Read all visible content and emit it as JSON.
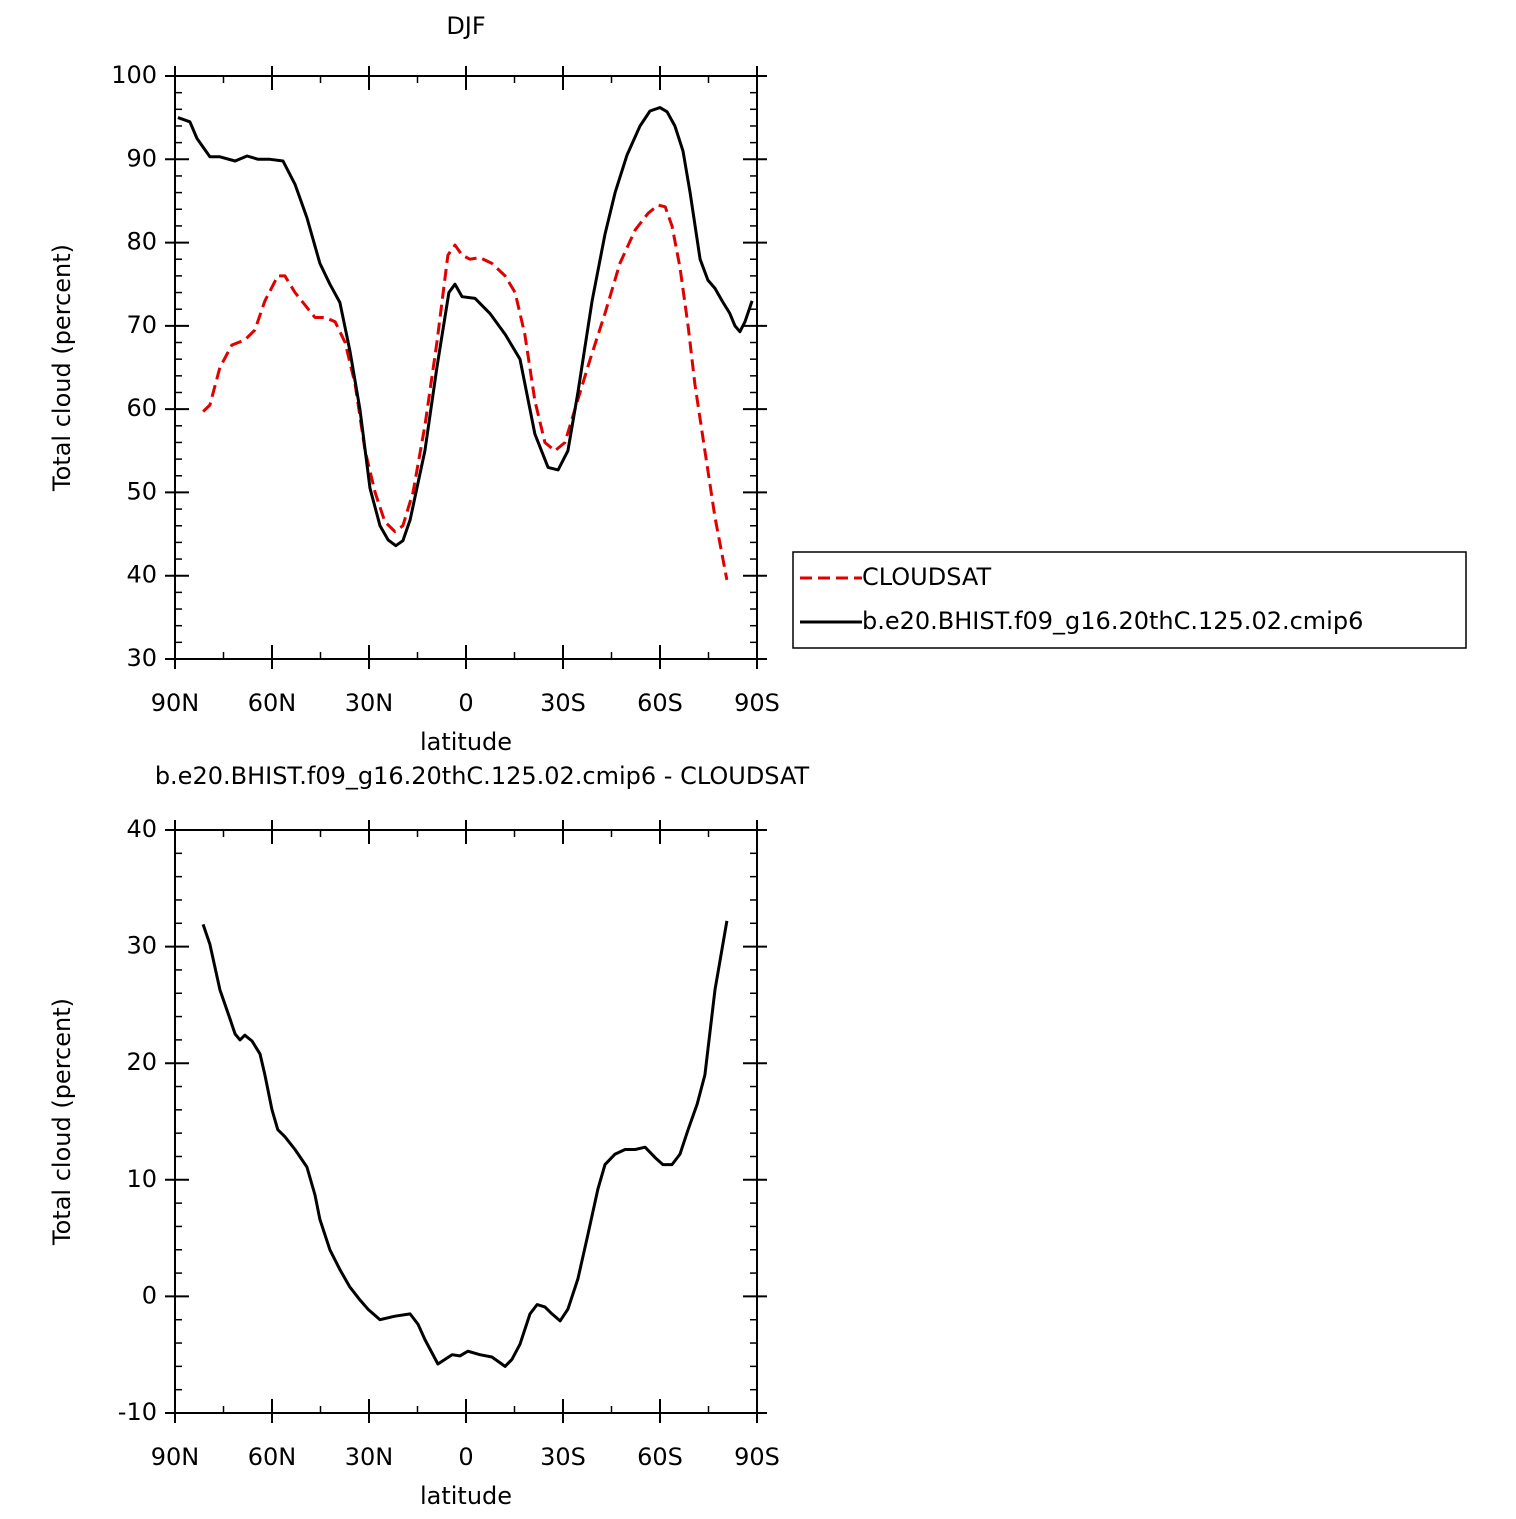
{
  "chart_data": [
    {
      "type": "line",
      "title": "DJF",
      "xlabel": "latitude",
      "ylabel": "Total cloud (percent)",
      "xlim": [
        90,
        -90
      ],
      "xticks": [
        {
          "value": 90,
          "label": "90N"
        },
        {
          "value": 60,
          "label": "60N"
        },
        {
          "value": 30,
          "label": "30N"
        },
        0,
        {
          "value": -30,
          "label": "30S"
        },
        {
          "value": -60,
          "label": "60S"
        },
        {
          "value": -90,
          "label": "90S"
        }
      ],
      "ylim": [
        30,
        100
      ],
      "yticks": [
        30,
        40,
        50,
        60,
        70,
        80,
        90,
        100
      ],
      "legend": "right",
      "series": [
        {
          "name": "CLOUDSAT",
          "color": "#e00000",
          "style": "dashed",
          "x": [
            81.3,
            79.2,
            76.1,
            72.4,
            68.4,
            65.3,
            62.2,
            58.2,
            56.0,
            52.9,
            49.8,
            46.7,
            43.6,
            40.5,
            37.4,
            34.3,
            31.2,
            28.1,
            25.1,
            22.0,
            19.5,
            16.4,
            12.7,
            9.0,
            5.6,
            3.4,
            1.2,
            -1.2,
            -4.3,
            -8.0,
            -12.1,
            -15.2,
            -18.2,
            -21.3,
            -24.4,
            -27.5,
            -30.6,
            -33.7,
            -38.4,
            -43.0,
            -47.6,
            -52.3,
            -56.3,
            -59.4,
            -61.6,
            -63.7,
            -66.2,
            -68.7,
            -70.8,
            -73.9,
            -77.0,
            -80.7
          ],
          "values": [
            59.7,
            60.5,
            65,
            67.7,
            68.3,
            69.5,
            73,
            76,
            76,
            74,
            72.5,
            71,
            71,
            70.5,
            68,
            63,
            55,
            50,
            46.5,
            45.3,
            46,
            50,
            58,
            68,
            78.5,
            79.7,
            78.5,
            78,
            78.2,
            77.5,
            76,
            74,
            69,
            61,
            56,
            55,
            56,
            60,
            66,
            71.5,
            77.5,
            81.5,
            83.5,
            84.5,
            84.3,
            82,
            77,
            70,
            63,
            55,
            47,
            39.5
          ]
        },
        {
          "name": "b.e20.BHIST.f09_g16.20thC.125.02.cmip6",
          "color": "#000000",
          "style": "solid",
          "x": [
            89.1,
            85.4,
            83.2,
            79.2,
            76.1,
            71.4,
            67.7,
            64.3,
            60.6,
            56.6,
            52.9,
            49.2,
            45.2,
            42.1,
            39.0,
            35.9,
            32.8,
            29.7,
            26.6,
            24.1,
            21.7,
            19.5,
            17.3,
            12.7,
            9.0,
            5.3,
            3.4,
            1.2,
            -2.8,
            -7.4,
            -12.1,
            -16.7,
            -21.3,
            -25.4,
            -28.5,
            -31.5,
            -34.6,
            -39.0,
            -43.0,
            -46.1,
            -49.8,
            -53.8,
            -56.9,
            -60.0,
            -62.2,
            -64.6,
            -67.1,
            -69.3,
            -72.4,
            -74.8,
            -77.0,
            -79.2,
            -81.6,
            -83.2,
            -84.7,
            -86.3,
            -88.5
          ],
          "values": [
            95,
            94.5,
            92.5,
            90.3,
            90.3,
            89.8,
            90.4,
            90,
            90,
            89.8,
            87,
            83,
            77.5,
            75,
            72.8,
            67,
            60,
            50.5,
            46,
            44.3,
            43.6,
            44.2,
            46.7,
            55,
            65,
            74,
            75,
            73.5,
            73.3,
            71.5,
            69,
            66,
            57,
            53,
            52.7,
            55,
            62,
            73,
            81,
            86,
            90.5,
            94,
            95.8,
            96.2,
            95.7,
            94,
            91,
            86,
            78,
            75.5,
            74.5,
            73,
            71.5,
            70,
            69.3,
            70.5,
            73
          ]
        }
      ]
    },
    {
      "type": "line",
      "title": "b.e20.BHIST.f09_g16.20thC.125.02.cmip6 - CLOUDSAT",
      "xlabel": "latitude",
      "ylabel": "Total cloud (percent)",
      "xlim": [
        90,
        -90
      ],
      "xticks": [
        {
          "value": 90,
          "label": "90N"
        },
        {
          "value": 60,
          "label": "60N"
        },
        {
          "value": 30,
          "label": "30N"
        },
        0,
        {
          "value": -30,
          "label": "30S"
        },
        {
          "value": -60,
          "label": "60S"
        },
        {
          "value": -90,
          "label": "90S"
        }
      ],
      "ylim": [
        -10,
        40
      ],
      "yticks": [
        -10,
        0,
        10,
        20,
        30,
        40
      ],
      "series": [
        {
          "color": "#000000",
          "style": "solid",
          "x": [
            81.3,
            79.2,
            76.1,
            73.0,
            71.4,
            69.9,
            68.4,
            66.2,
            63.7,
            62.2,
            60.0,
            58.2,
            56.0,
            52.9,
            49.2,
            46.7,
            45.2,
            42.1,
            39.0,
            35.9,
            32.8,
            30.3,
            26.6,
            22.0,
            17.3,
            14.8,
            12.7,
            8.7,
            6.5,
            4.3,
            1.9,
            -0.6,
            -4.3,
            -8.0,
            -12.1,
            -14.2,
            -16.7,
            -19.8,
            -22.0,
            -24.4,
            -26.6,
            -29.1,
            -31.5,
            -34.6,
            -37.7,
            -40.8,
            -43.0,
            -46.1,
            -49.2,
            -52.3,
            -55.4,
            -58.5,
            -60.9,
            -63.7,
            -66.2,
            -68.7,
            -71.5,
            -73.9,
            -77.0,
            -80.7
          ],
          "values": [
            31.9,
            30.2,
            26.3,
            23.8,
            22.5,
            22.0,
            22.4,
            21.9,
            20.8,
            19.0,
            16.0,
            14.3,
            13.7,
            12.6,
            11.1,
            8.7,
            6.6,
            4.0,
            2.3,
            0.8,
            -0.3,
            -1.1,
            -2.0,
            -1.7,
            -1.5,
            -2.4,
            -3.7,
            -5.8,
            -5.4,
            -5.0,
            -5.1,
            -4.7,
            -5.0,
            -5.2,
            -6.0,
            -5.4,
            -4.1,
            -1.5,
            -0.7,
            -0.9,
            -1.5,
            -2.1,
            -1.1,
            1.5,
            5.3,
            9.2,
            11.3,
            12.2,
            12.6,
            12.6,
            12.8,
            11.9,
            11.3,
            11.3,
            12.2,
            14.3,
            16.5,
            19.0,
            26.3,
            32.2
          ]
        }
      ]
    }
  ]
}
